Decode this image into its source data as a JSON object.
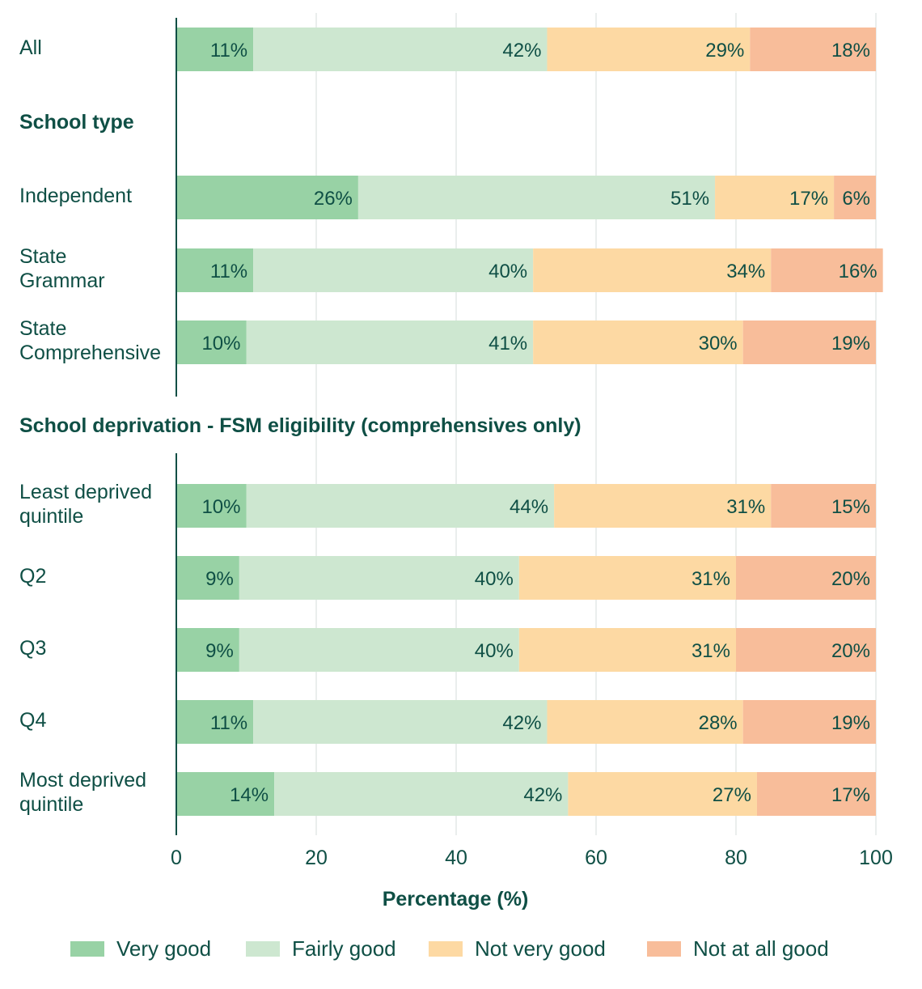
{
  "chart_data": {
    "type": "bar",
    "orientation": "horizontal",
    "stacked": true,
    "xlabel": "Percentage (%)",
    "xlim": [
      0,
      100
    ],
    "xticks": [
      0,
      20,
      40,
      60,
      80,
      100
    ],
    "grid": true,
    "legend_position": "bottom",
    "series": [
      {
        "name": "Very good",
        "color": "#98d2a5"
      },
      {
        "name": "Fairly good",
        "color": "#cde7d0"
      },
      {
        "name": "Not very good",
        "color": "#fdd9a3"
      },
      {
        "name": "Not at all good",
        "color": "#f8bd9a"
      }
    ],
    "groups": [
      {
        "label": "",
        "rows": [
          {
            "label": [
              "All"
            ],
            "values": [
              11,
              42,
              29,
              18
            ]
          }
        ]
      },
      {
        "label": "School type",
        "rows": [
          {
            "label": [
              "Independent"
            ],
            "values": [
              26,
              51,
              17,
              6
            ]
          },
          {
            "label": [
              "State",
              "Grammar"
            ],
            "values": [
              11,
              40,
              34,
              16
            ]
          },
          {
            "label": [
              "State",
              "Comprehensive"
            ],
            "values": [
              10,
              41,
              30,
              19
            ]
          }
        ]
      },
      {
        "label": "School deprivation - FSM eligibility (comprehensives only)",
        "rows": [
          {
            "label": [
              "Least deprived",
              "quintile"
            ],
            "values": [
              10,
              44,
              31,
              15
            ]
          },
          {
            "label": [
              "Q2"
            ],
            "values": [
              9,
              40,
              31,
              20
            ]
          },
          {
            "label": [
              "Q3"
            ],
            "values": [
              9,
              40,
              31,
              20
            ]
          },
          {
            "label": [
              "Q4"
            ],
            "values": [
              11,
              42,
              28,
              19
            ]
          },
          {
            "label": [
              "Most deprived",
              "quintile"
            ],
            "values": [
              14,
              42,
              27,
              17
            ]
          }
        ]
      }
    ]
  }
}
